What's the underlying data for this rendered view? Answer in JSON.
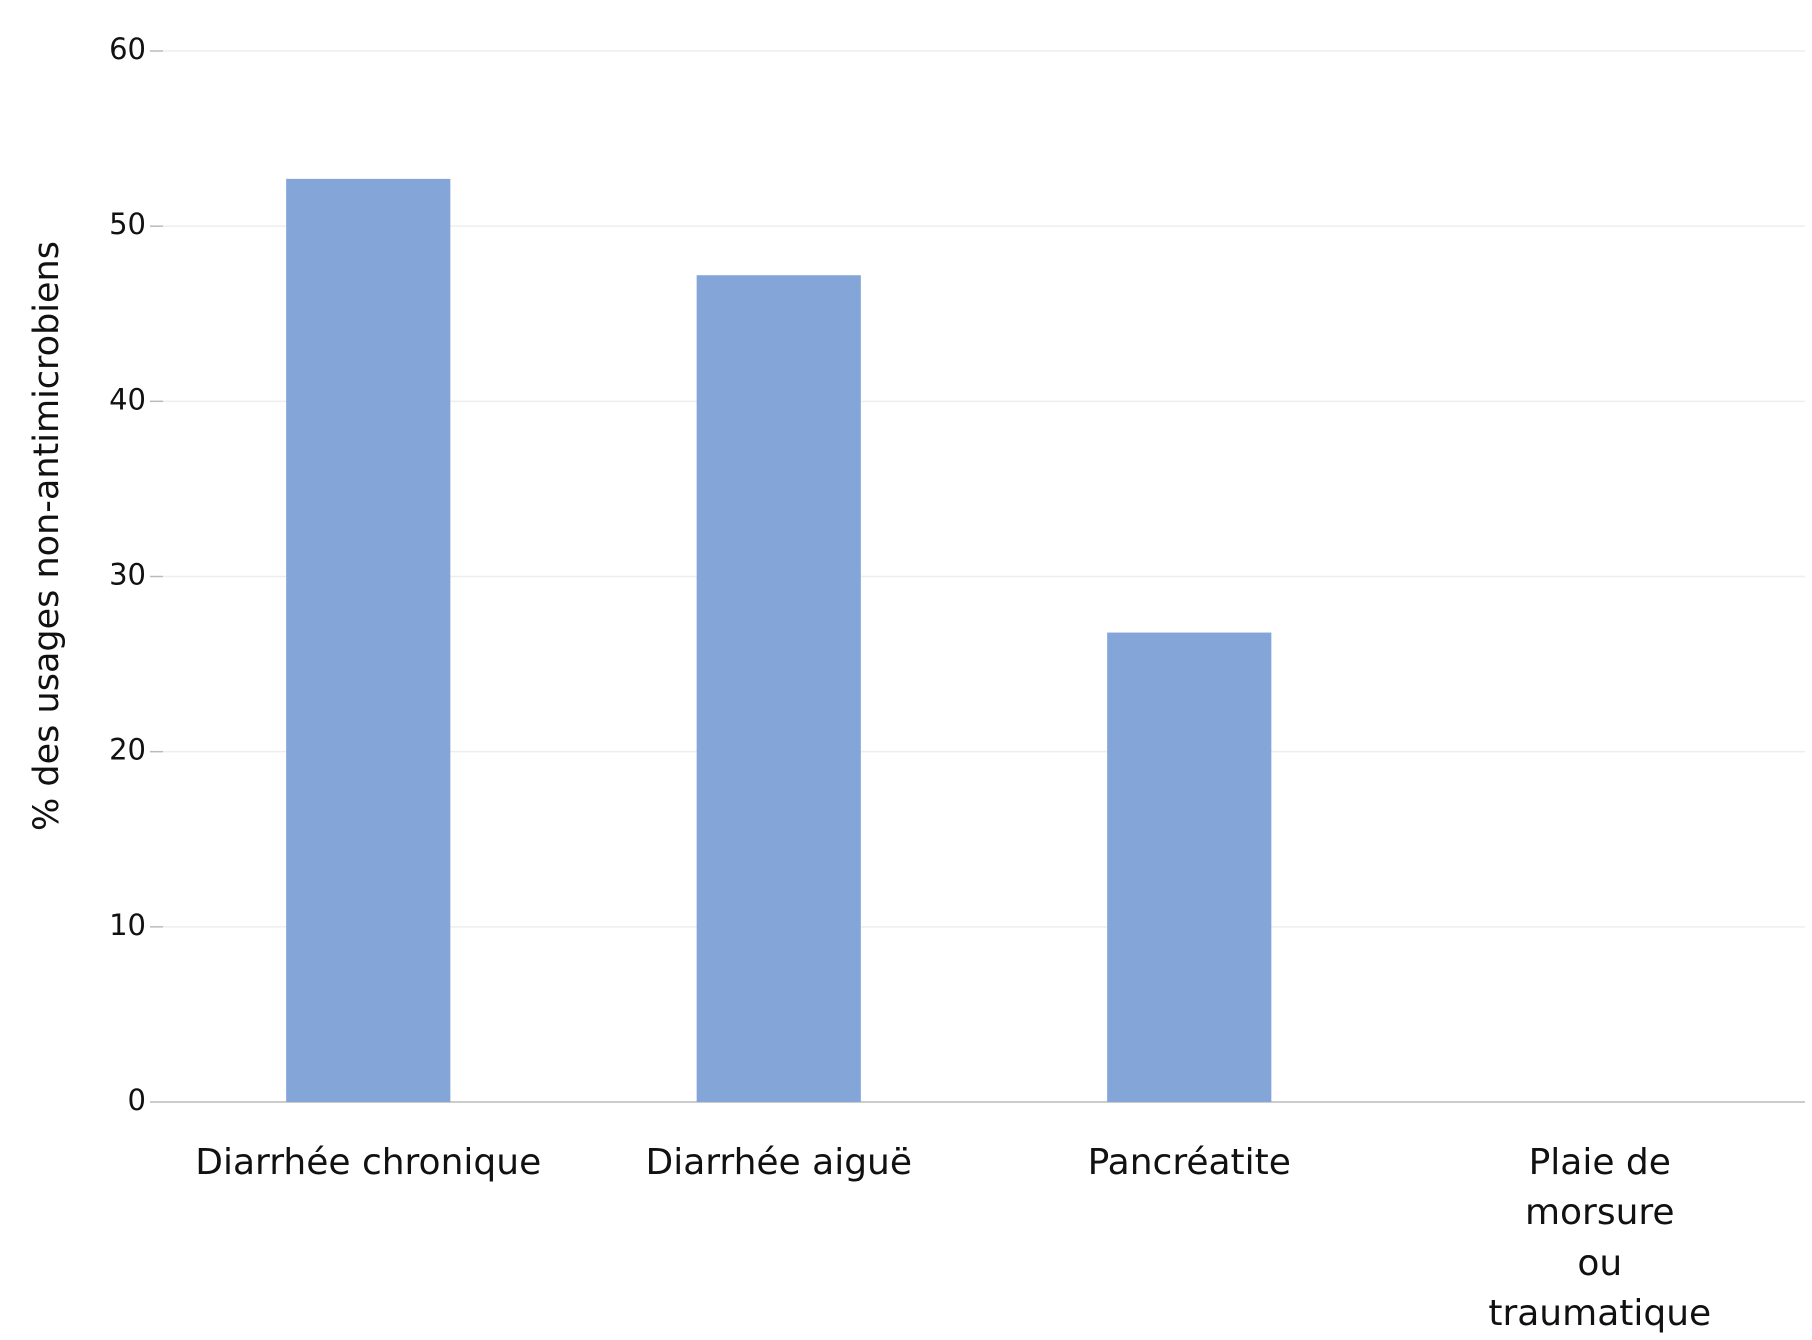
{
  "chart_data": {
    "type": "bar",
    "y_label": "% des usages non-antimicrobiens",
    "categories": [
      "Diarrhée chronique",
      "Diarrhée aiguë",
      "Pancréatite",
      "Plaie de morsure\nou traumatique"
    ],
    "values": [
      52.7,
      47.2,
      26.8,
      0
    ],
    "color": "#84a5d8",
    "ylim": [
      0,
      60
    ],
    "yticks": [
      0,
      10,
      20,
      30,
      40,
      50,
      60
    ],
    "grid": true
  }
}
